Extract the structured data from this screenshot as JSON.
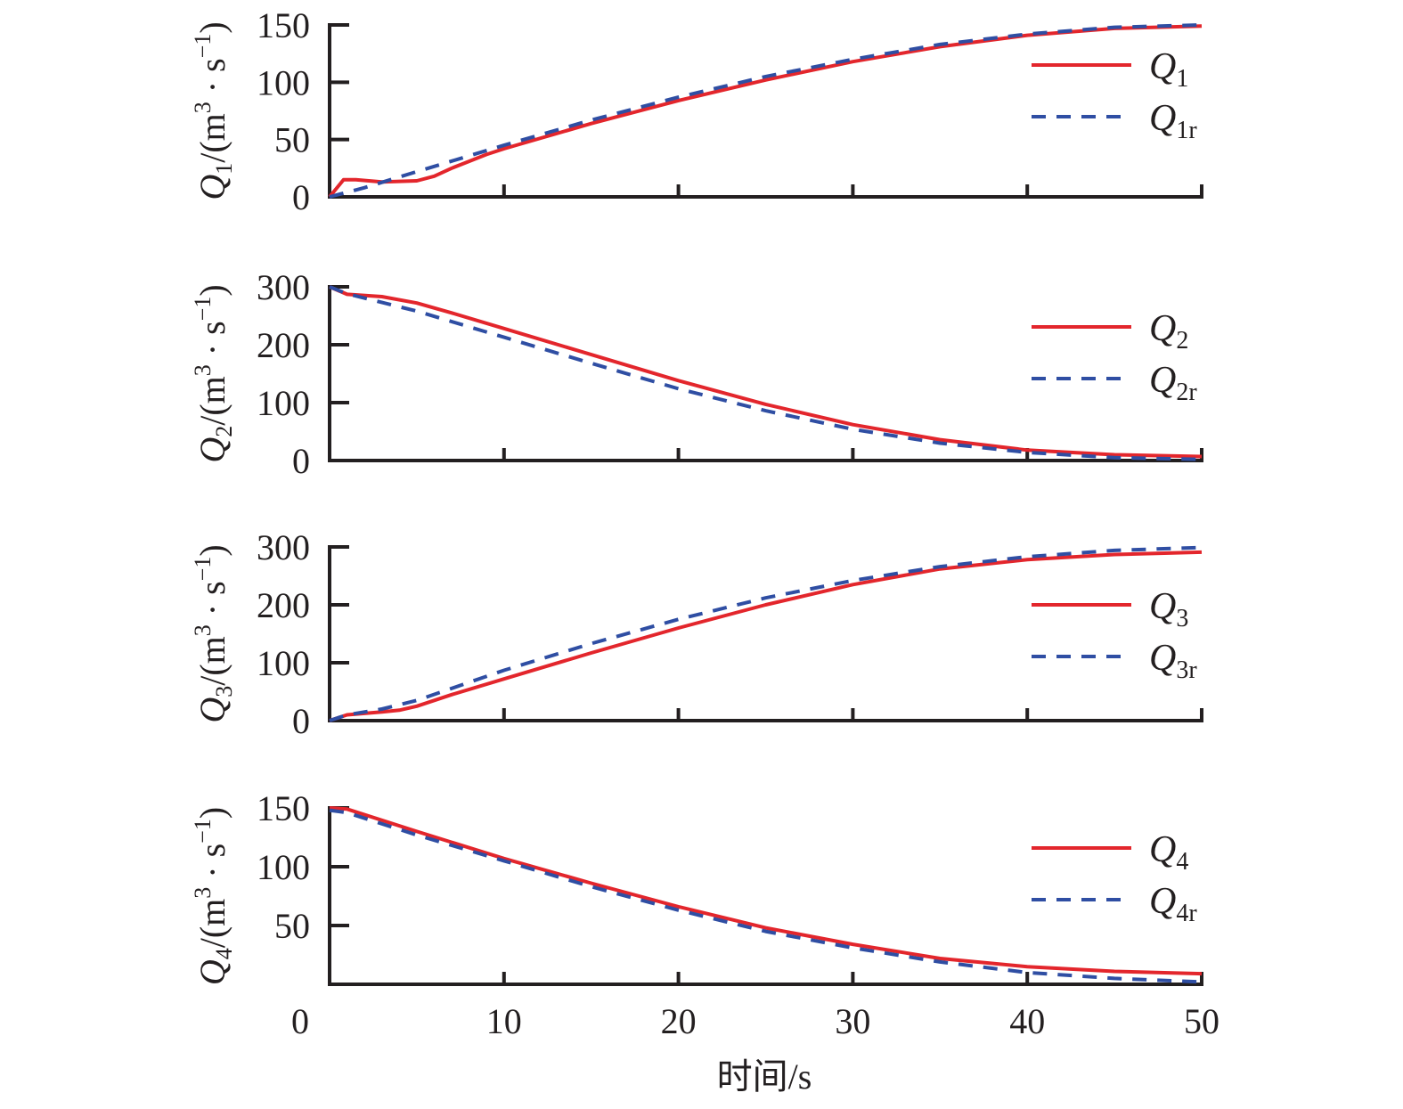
{
  "colors": {
    "measured": "#e3262c",
    "reference": "#2f4ea3",
    "axis": "#231f20"
  },
  "chart_data": {
    "type": "line",
    "xlabel": "时间/s",
    "xlim": [
      0,
      50
    ],
    "xticks": [
      0,
      10,
      20,
      30,
      40,
      50
    ],
    "panels": [
      {
        "ylabel": {
          "sym": "Q",
          "sub": "1",
          "unit": "/(m",
          "pow": "3",
          "mid": " · s",
          "negpow": "−1",
          "close": ")"
        },
        "ylim": [
          0,
          150
        ],
        "yticks": [
          0,
          50,
          100,
          150
        ],
        "series": [
          {
            "name": "Q",
            "sub": "1",
            "style": "solid",
            "x": [
              0,
              0.8,
              1.5,
              3,
              5,
              6,
              7,
              8,
              9,
              10,
              15,
              20,
              25,
              30,
              35,
              40,
              45,
              50
            ],
            "y": [
              0,
              15,
              15,
              13,
              14,
              18,
              25,
              31,
              37,
              42,
              64,
              84,
              102,
              118,
              131,
              141,
              147,
              149
            ]
          },
          {
            "name": "Q",
            "sub": "1r",
            "style": "dashed",
            "x": [
              0,
              2,
              5,
              10,
              15,
              20,
              25,
              30,
              35,
              40,
              45,
              50
            ],
            "y": [
              0,
              8,
              22,
              45,
              67,
              87,
              105,
              120,
              133,
              142,
              148,
              150
            ]
          }
        ]
      },
      {
        "ylabel": {
          "sym": "Q",
          "sub": "2",
          "unit": "/(m",
          "pow": "3",
          "mid": " · s",
          "negpow": "−1",
          "close": ")"
        },
        "ylim": [
          0,
          300
        ],
        "yticks": [
          0,
          100,
          200,
          300
        ],
        "series": [
          {
            "name": "Q",
            "sub": "2",
            "style": "solid",
            "x": [
              0,
              1,
              3,
              5,
              7,
              10,
              15,
              20,
              25,
              30,
              35,
              40,
              45,
              50
            ],
            "y": [
              300,
              287,
              283,
              272,
              255,
              228,
              183,
              138,
              97,
              62,
              36,
              18,
              10,
              7
            ]
          },
          {
            "name": "Q",
            "sub": "2r",
            "style": "dashed",
            "x": [
              0,
              1,
              5,
              10,
              15,
              20,
              25,
              30,
              35,
              40,
              45,
              50
            ],
            "y": [
              300,
              288,
              258,
              213,
              168,
              124,
              86,
              54,
              30,
              14,
              5,
              2
            ]
          }
        ]
      },
      {
        "ylabel": {
          "sym": "Q",
          "sub": "3",
          "unit": "/(m",
          "pow": "3",
          "mid": " · s",
          "negpow": "−1",
          "close": ")"
        },
        "ylim": [
          0,
          300
        ],
        "yticks": [
          0,
          100,
          200,
          300
        ],
        "series": [
          {
            "name": "Q",
            "sub": "3",
            "style": "solid",
            "x": [
              0,
              1,
              3,
              4,
              5,
              7,
              10,
              15,
              20,
              25,
              30,
              35,
              40,
              45,
              50
            ],
            "y": [
              0,
              10,
              15,
              18,
              25,
              45,
              72,
              117,
              160,
              200,
              235,
              262,
              278,
              287,
              291
            ]
          },
          {
            "name": "Q",
            "sub": "3r",
            "style": "dashed",
            "x": [
              0,
              1,
              3,
              5,
              10,
              15,
              20,
              25,
              30,
              35,
              40,
              45,
              50
            ],
            "y": [
              0,
              10,
              20,
              35,
              87,
              133,
              175,
              212,
              242,
              266,
              283,
              294,
              299
            ]
          }
        ]
      },
      {
        "ylabel": {
          "sym": "Q",
          "sub": "4",
          "unit": "/(m",
          "pow": "3",
          "mid": " · s",
          "negpow": "−1",
          "close": ")"
        },
        "ylim": [
          0,
          150
        ],
        "yticks": [
          50,
          100,
          150
        ],
        "series": [
          {
            "name": "Q",
            "sub": "4",
            "style": "solid",
            "x": [
              0,
              1,
              5,
              10,
              15,
              20,
              25,
              30,
              35,
              40,
              45,
              50
            ],
            "y": [
              150,
              149,
              130,
              107,
              86,
              66,
              48,
              34,
              22,
              15,
              11,
              9
            ]
          },
          {
            "name": "Q",
            "sub": "4r",
            "style": "dashed",
            "x": [
              0,
              1,
              5,
              10,
              15,
              20,
              25,
              30,
              35,
              40,
              45,
              50
            ],
            "y": [
              148,
              146,
              127,
              105,
              83,
              63,
              45,
              31,
              19,
              10,
              5,
              2
            ]
          }
        ]
      }
    ]
  }
}
